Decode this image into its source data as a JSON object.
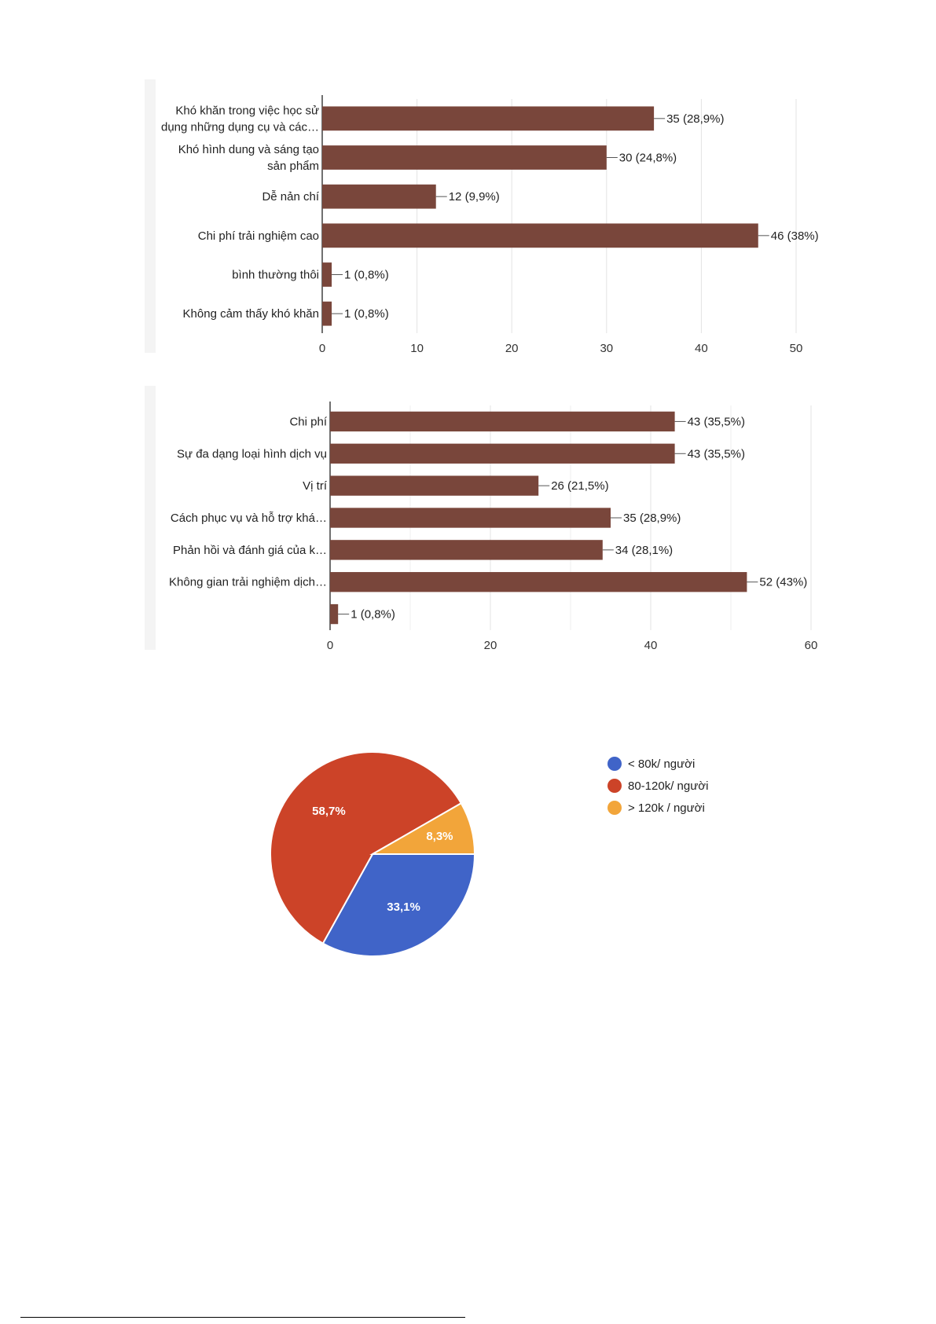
{
  "chart_data": [
    {
      "type": "bar",
      "orientation": "horizontal",
      "categories": [
        [
          "Khó khăn trong việc học sử",
          "dụng những dụng cụ và các…"
        ],
        [
          "Khó hình dung và sáng tạo",
          "sản phẩm"
        ],
        [
          "Dễ nản chí"
        ],
        [
          "Chi phí trải nghiệm cao"
        ],
        [
          "bình thường thôi"
        ],
        [
          "Không cảm thấy khó khăn"
        ]
      ],
      "values": [
        35,
        30,
        12,
        46,
        1,
        1
      ],
      "data_labels": [
        "35 (28,9%)",
        "30 (24,8%)",
        "12 (9,9%)",
        "46 (38%)",
        "1 (0,8%)",
        "1 (0,8%)"
      ],
      "xlim": [
        0,
        50
      ],
      "xticks": [
        0,
        10,
        20,
        30,
        40,
        50
      ],
      "grid": true,
      "color": "#79463b"
    },
    {
      "type": "bar",
      "orientation": "horizontal",
      "categories": [
        [
          "Chi phí"
        ],
        [
          "Sự đa dạng loại hình dịch vụ"
        ],
        [
          "Vị trí"
        ],
        [
          "Cách phục vụ và hỗ trợ khá…"
        ],
        [
          "Phản hồi và đánh giá của k…"
        ],
        [
          "Không gian trải nghiệm dịch…"
        ],
        [
          ""
        ]
      ],
      "values": [
        43,
        43,
        26,
        35,
        34,
        52,
        1
      ],
      "data_labels": [
        "43 (35,5%)",
        "43 (35,5%)",
        "26 (21,5%)",
        "35 (28,9%)",
        "34 (28,1%)",
        "52 (43%)",
        "1 (0,8%)"
      ],
      "xlim": [
        0,
        60
      ],
      "xticks": [
        0,
        20,
        40,
        60
      ],
      "grid": true,
      "color": "#79463b"
    },
    {
      "type": "pie",
      "slices": [
        {
          "name": "< 80k/ người",
          "value": 33.1,
          "label": "33,1%",
          "color": "#4064c8"
        },
        {
          "name": "80-120k/ người",
          "value": 58.7,
          "label": "58,7%",
          "color": "#cc4328"
        },
        {
          "name": "> 120k / người",
          "value": 8.3,
          "label": "8,3%",
          "color": "#f2a53a"
        }
      ],
      "legend_position": "right"
    }
  ]
}
